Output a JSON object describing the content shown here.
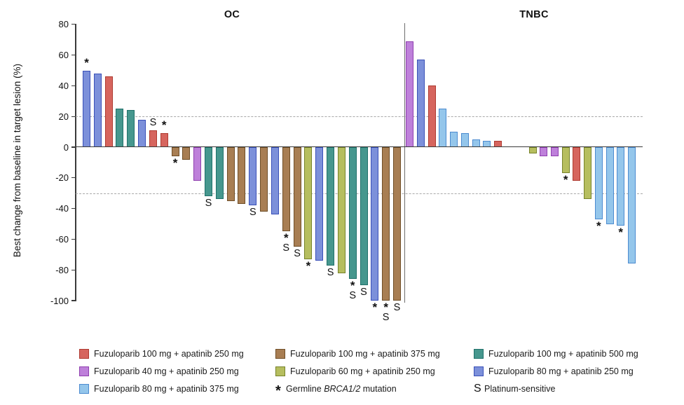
{
  "chart_data": {
    "type": "bar",
    "title": "",
    "ylabel": "Best change from baseline in target lesion (%)",
    "ylim": [
      -100,
      80
    ],
    "yticks": [
      80,
      60,
      40,
      20,
      0,
      -20,
      -40,
      -60,
      -80,
      -100
    ],
    "reference_lines": [
      20,
      -30
    ],
    "grid": false,
    "treatments": {
      "fuz100_apa250": {
        "label": "Fuzuloparib 100 mg + apatinib 250 mg",
        "fill": "#D6655E",
        "border": "#AE3A30"
      },
      "fuz100_apa375": {
        "label": "Fuzuloparib 100 mg + apatinib 375 mg",
        "fill": "#A87E53",
        "border": "#6F4E27"
      },
      "fuz100_apa500": {
        "label": "Fuzuloparib 100 mg + apatinib 500 mg",
        "fill": "#46978E",
        "border": "#20716A"
      },
      "fuz40_apa250": {
        "label": "Fuzuloparib 40 mg + apatinib 250 mg",
        "fill": "#BE80DA",
        "border": "#8F3FAF"
      },
      "fuz60_apa250": {
        "label": "Fuzuloparib 60 mg + apatinib 250 mg",
        "fill": "#B6BE5F",
        "border": "#77832B"
      },
      "fuz80_apa250": {
        "label": "Fuzuloparib 80 mg + apatinib 250 mg",
        "fill": "#7C90DA",
        "border": "#3A50B8"
      },
      "fuz80_apa375": {
        "label": "Fuzuloparib 80 mg + apatinib 375 mg",
        "fill": "#94C6EB",
        "border": "#4C8BD0"
      }
    },
    "markers": {
      "brca": {
        "symbol": "*",
        "label_prefix": "Germline ",
        "label_italic": "BRCA1/2",
        "label_suffix": " mutation"
      },
      "ps": {
        "symbol": "S",
        "label_prefix": "Platinum-sensitive",
        "label_italic": "",
        "label_suffix": ""
      }
    },
    "groups": [
      {
        "name": "OC",
        "bars": [
          {
            "value": 50,
            "treatment": "fuz80_apa250",
            "marks": [
              "brca"
            ]
          },
          {
            "value": 48,
            "treatment": "fuz80_apa250"
          },
          {
            "value": 46,
            "treatment": "fuz100_apa250"
          },
          {
            "value": 25,
            "treatment": "fuz100_apa500"
          },
          {
            "value": 24,
            "treatment": "fuz100_apa500"
          },
          {
            "value": 18,
            "treatment": "fuz80_apa250"
          },
          {
            "value": 11,
            "treatment": "fuz100_apa250",
            "marks": [
              "ps"
            ]
          },
          {
            "value": 9,
            "treatment": "fuz100_apa250",
            "marks": [
              "brca"
            ]
          },
          {
            "value": -6,
            "treatment": "fuz100_apa375",
            "marks": [
              "brca"
            ]
          },
          {
            "value": -8,
            "treatment": "fuz100_apa375"
          },
          {
            "value": -22,
            "treatment": "fuz40_apa250"
          },
          {
            "value": -32,
            "treatment": "fuz100_apa500",
            "marks": [
              "ps"
            ]
          },
          {
            "value": -34,
            "treatment": "fuz100_apa500"
          },
          {
            "value": -35,
            "treatment": "fuz100_apa375"
          },
          {
            "value": -37,
            "treatment": "fuz100_apa375"
          },
          {
            "value": -38,
            "treatment": "fuz80_apa250",
            "marks": [
              "ps"
            ]
          },
          {
            "value": -42,
            "treatment": "fuz100_apa375"
          },
          {
            "value": -44,
            "treatment": "fuz80_apa250"
          },
          {
            "value": -55,
            "treatment": "fuz100_apa375",
            "marks": [
              "brca",
              "ps"
            ]
          },
          {
            "value": -65,
            "treatment": "fuz100_apa375",
            "marks": [
              "ps"
            ]
          },
          {
            "value": -73,
            "treatment": "fuz60_apa250",
            "marks": [
              "brca"
            ]
          },
          {
            "value": -74,
            "treatment": "fuz80_apa250"
          },
          {
            "value": -77,
            "treatment": "fuz100_apa500",
            "marks": [
              "ps"
            ]
          },
          {
            "value": -82,
            "treatment": "fuz60_apa250"
          },
          {
            "value": -86,
            "treatment": "fuz100_apa500",
            "marks": [
              "brca",
              "ps"
            ]
          },
          {
            "value": -90,
            "treatment": "fuz100_apa500",
            "marks": [
              "ps"
            ]
          },
          {
            "value": -100,
            "treatment": "fuz80_apa250",
            "marks": [
              "brca"
            ]
          },
          {
            "value": -100,
            "treatment": "fuz100_apa375",
            "marks": [
              "brca",
              "ps"
            ]
          },
          {
            "value": -100,
            "treatment": "fuz100_apa375",
            "marks": [
              "ps"
            ]
          }
        ]
      },
      {
        "name": "TNBC",
        "bars": [
          {
            "value": 69,
            "treatment": "fuz40_apa250"
          },
          {
            "value": 57,
            "treatment": "fuz80_apa250"
          },
          {
            "value": 40,
            "treatment": "fuz100_apa250"
          },
          {
            "value": 25,
            "treatment": "fuz80_apa375"
          },
          {
            "value": 10,
            "treatment": "fuz80_apa375"
          },
          {
            "value": 9,
            "treatment": "fuz80_apa375"
          },
          {
            "value": 5,
            "treatment": "fuz80_apa375"
          },
          {
            "value": 4,
            "treatment": "fuz80_apa375"
          },
          {
            "value": 4,
            "treatment": "fuz100_apa250"
          },
          {
            "value": -4,
            "treatment": "fuz60_apa250",
            "gap_before": true
          },
          {
            "value": -6,
            "treatment": "fuz40_apa250"
          },
          {
            "value": -6,
            "treatment": "fuz40_apa250"
          },
          {
            "value": -17,
            "treatment": "fuz60_apa250",
            "marks": [
              "brca"
            ]
          },
          {
            "value": -22,
            "treatment": "fuz100_apa250"
          },
          {
            "value": -34,
            "treatment": "fuz60_apa250"
          },
          {
            "value": -47,
            "treatment": "fuz80_apa375",
            "marks": [
              "brca"
            ]
          },
          {
            "value": -50,
            "treatment": "fuz80_apa375"
          },
          {
            "value": -51,
            "treatment": "fuz80_apa375",
            "marks": [
              "brca"
            ]
          },
          {
            "value": -76,
            "treatment": "fuz80_apa375"
          }
        ]
      }
    ],
    "legend": {
      "columns": [
        [
          "fuz100_apa250",
          "fuz40_apa250",
          "fuz80_apa375"
        ],
        [
          "fuz100_apa375",
          "fuz60_apa250",
          {
            "marker": "brca"
          }
        ],
        [
          "fuz100_apa500",
          "fuz80_apa250",
          {
            "marker": "ps"
          }
        ]
      ]
    }
  }
}
